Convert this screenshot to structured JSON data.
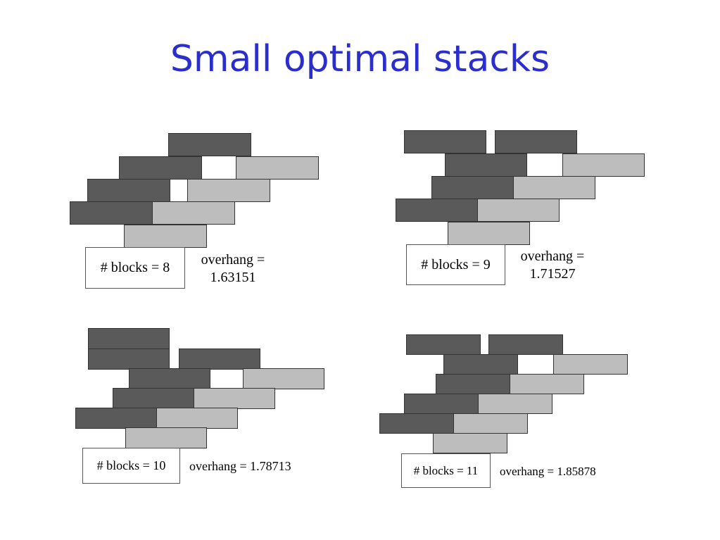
{
  "title": "Small optimal stacks",
  "colors": {
    "title": "#2a2ecf",
    "dark_block": "#5a5a5a",
    "light_block": "#bdbdbd"
  },
  "stacks": [
    {
      "blocks_label": "# blocks = 8",
      "overhang_label": "overhang =",
      "overhang_value": "1.63151"
    },
    {
      "blocks_label": "# blocks = 9",
      "overhang_label": "overhang =",
      "overhang_value": "1.71527"
    },
    {
      "blocks_label": "# blocks = 10",
      "overhang_text": "overhang = 1.78713"
    },
    {
      "blocks_label": "# blocks = 11",
      "overhang_text": "overhang = 1.85878"
    }
  ]
}
